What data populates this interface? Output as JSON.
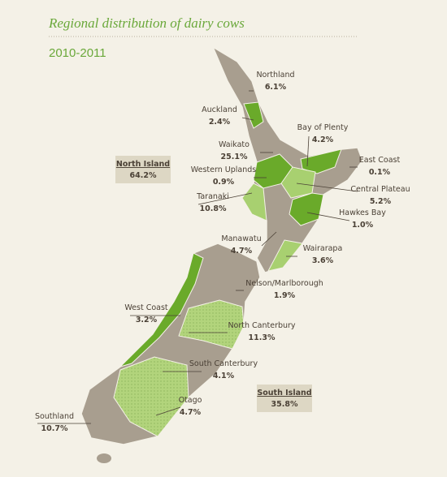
{
  "title": "Regional distribution of dairy cows",
  "subtitle": "2010-2011",
  "islands": [
    {
      "name": "North Island",
      "share": "64.2%"
    },
    {
      "name": "South Island",
      "share": "35.8%"
    }
  ],
  "regions": [
    {
      "name": "Northland",
      "share": "6.1%"
    },
    {
      "name": "Auckland",
      "share": "2.4%"
    },
    {
      "name": "Bay of Plenty",
      "share": "4.2%"
    },
    {
      "name": "Waikato",
      "share": "25.1%"
    },
    {
      "name": "East Coast",
      "share": "0.1%"
    },
    {
      "name": "Western Uplands",
      "share": "0.9%"
    },
    {
      "name": "Central Plateau",
      "share": "5.2%"
    },
    {
      "name": "Taranaki",
      "share": "10.8%"
    },
    {
      "name": "Hawkes Bay",
      "share": "1.0%"
    },
    {
      "name": "Manawatu",
      "share": "4.7%"
    },
    {
      "name": "Wairarapa",
      "share": "3.6%"
    },
    {
      "name": "Nelson/Marlborough",
      "share": "1.9%"
    },
    {
      "name": "West Coast",
      "share": "3.2%"
    },
    {
      "name": "North Canterbury",
      "share": "11.3%"
    },
    {
      "name": "South Canterbury",
      "share": "4.1%"
    },
    {
      "name": "Otago",
      "share": "4.7%"
    },
    {
      "name": "Southland",
      "share": "10.7%"
    }
  ]
}
